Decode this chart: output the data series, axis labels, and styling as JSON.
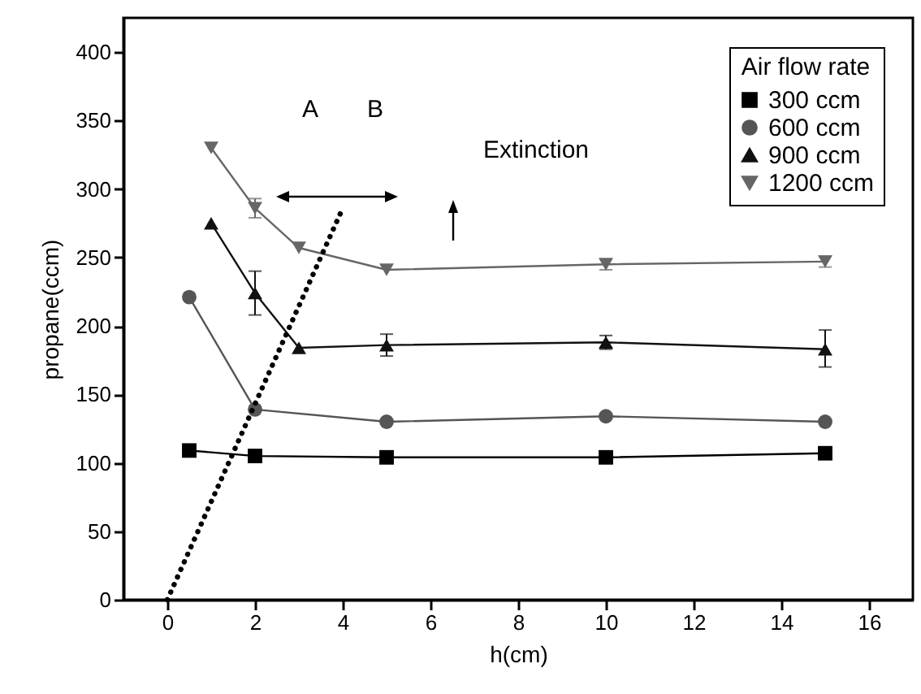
{
  "chart_data": {
    "type": "line",
    "xlabel": "h(cm)",
    "ylabel": "propane(ccm)",
    "legend_title": "Air flow rate",
    "legend": "top right",
    "grid": false,
    "xlim": [
      -1,
      17
    ],
    "xticks": [
      0,
      2,
      4,
      6,
      8,
      10,
      12,
      14,
      16
    ],
    "ylim": [
      0,
      425
    ],
    "yticks": [
      0,
      50,
      100,
      150,
      200,
      250,
      300,
      350,
      400
    ],
    "series": [
      {
        "name": "300 ccm",
        "color": "#000000",
        "marker": "square",
        "x": [
          0.5,
          2,
          5,
          10,
          15
        ],
        "values": [
          109,
          105,
          104,
          104,
          107
        ]
      },
      {
        "name": "600 ccm",
        "color": "#555555",
        "marker": "circle",
        "x": [
          0.5,
          2,
          5,
          10,
          15
        ],
        "values": [
          221,
          139,
          130,
          134,
          130
        ]
      },
      {
        "name": "900 ccm",
        "color": "#111111",
        "marker": "triangle",
        "x": [
          1,
          2,
          3,
          5,
          10,
          15
        ],
        "values": [
          275,
          224,
          184,
          186,
          188,
          183
        ],
        "errors": [
          null,
          [
            208,
            240
          ],
          null,
          8,
          5,
          [
            170,
            197
          ]
        ]
      },
      {
        "name": "1200 ccm",
        "color": "#666666",
        "marker": "triangle-down",
        "x": [
          1,
          2,
          3,
          5,
          10,
          15
        ],
        "values": [
          330,
          286,
          257,
          241,
          245,
          247
        ],
        "errors": [
          null,
          7,
          null,
          null,
          4,
          4
        ]
      },
      {
        "type": "line",
        "color": "#000000",
        "marker": "none",
        "line_style": "dotted",
        "x": [
          0,
          4
        ],
        "values": [
          0,
          286
        ]
      }
    ],
    "annotations": [
      "A",
      "B",
      "Extinction"
    ]
  }
}
